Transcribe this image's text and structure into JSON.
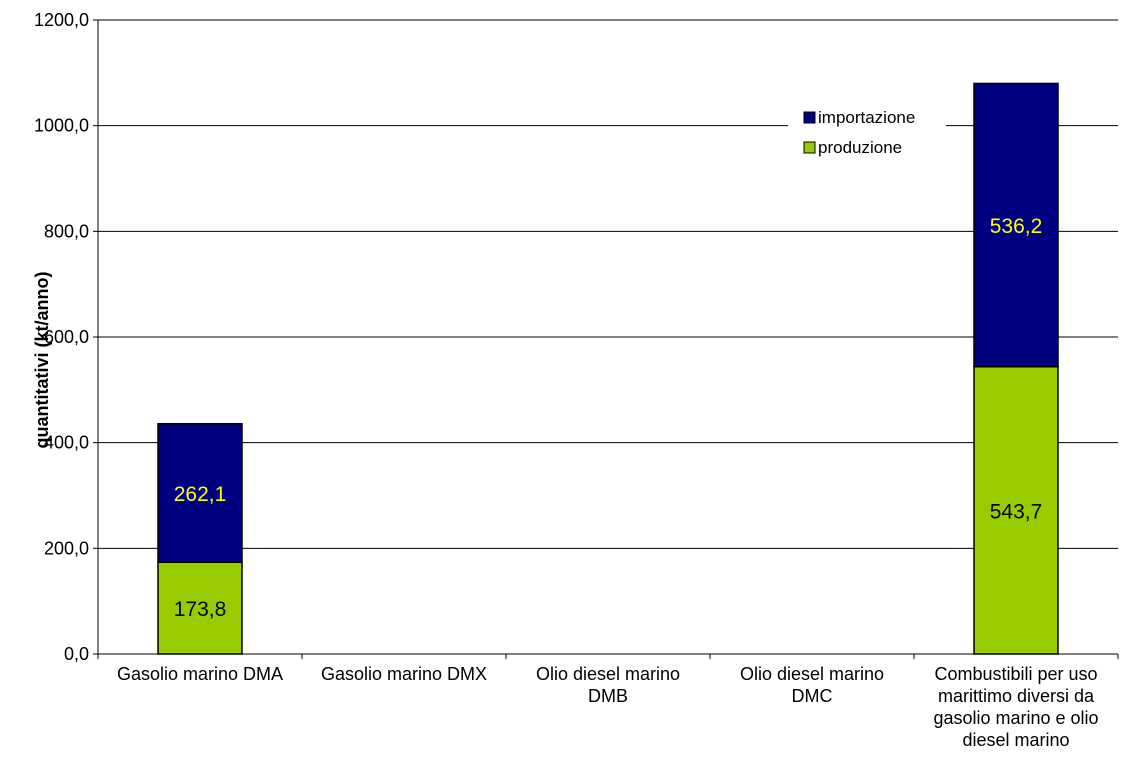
{
  "chart_data": {
    "type": "bar",
    "stacked": true,
    "categories": [
      [
        "Gasolio marino DMA"
      ],
      [
        "Gasolio marino DMX"
      ],
      [
        "Olio diesel marino",
        "DMB"
      ],
      [
        "Olio diesel marino",
        "DMC"
      ],
      [
        "Combustibili per uso",
        "marittimo diversi da",
        "gasolio marino e olio",
        "diesel marino"
      ]
    ],
    "series": [
      {
        "name": "produzione",
        "color": "#99cc00",
        "label_color": "#000000",
        "values": [
          173.8,
          0,
          0,
          0,
          543.7
        ],
        "labels": [
          "173,8",
          "",
          "",
          "",
          "543,7"
        ]
      },
      {
        "name": "importazione",
        "color": "#000080",
        "label_color": "#ffff00",
        "values": [
          262.1,
          0,
          0,
          0,
          536.2
        ],
        "labels": [
          "262,1",
          "",
          "",
          "",
          "536,2"
        ]
      }
    ],
    "title": "",
    "xlabel": "",
    "ylabel": "quantitativi (kt/anno)",
    "ylim": [
      0,
      1200
    ],
    "yticks": [
      0,
      200,
      400,
      600,
      800,
      1000,
      1200
    ],
    "ytick_labels": [
      "0,0",
      "200,0",
      "400,0",
      "600,0",
      "800,0",
      "1000,0",
      "1200,0"
    ],
    "grid": true,
    "legend": {
      "position": "top-right",
      "order": [
        "importazione",
        "produzione"
      ]
    }
  }
}
